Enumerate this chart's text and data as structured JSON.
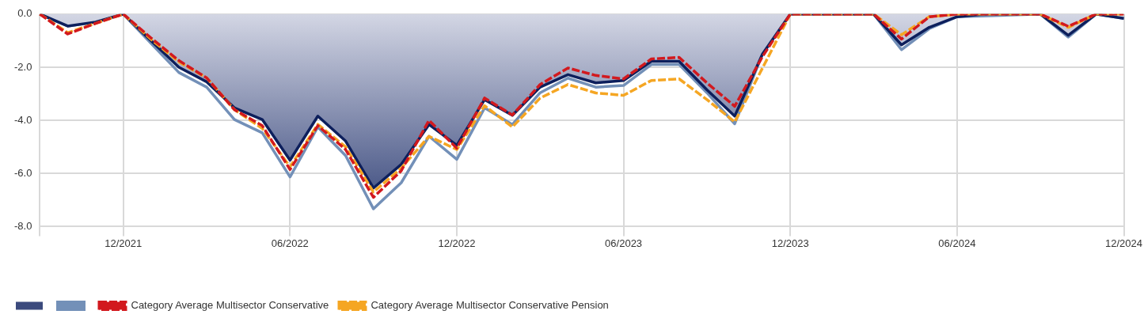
{
  "chart_data": {
    "type": "line",
    "categories": [
      null,
      null,
      null,
      "12/2021",
      null,
      null,
      null,
      null,
      null,
      "06/2022",
      null,
      null,
      null,
      null,
      null,
      "12/2022",
      null,
      null,
      null,
      null,
      null,
      "06/2023",
      null,
      null,
      null,
      null,
      null,
      "12/2023",
      null,
      null,
      null,
      null,
      null,
      "06/2024",
      null,
      null,
      null,
      null,
      null,
      "12/2024"
    ],
    "series": [
      {
        "type": "area",
        "color": "#0d1f5c",
        "values": [
          0,
          -0.45,
          -0.3,
          0,
          -1.0,
          -2.0,
          -2.55,
          -3.53,
          -3.97,
          -5.5,
          -3.84,
          -4.78,
          -6.55,
          -5.66,
          -4.16,
          -4.94,
          -3.22,
          -3.81,
          -2.75,
          -2.28,
          -2.59,
          -2.5,
          -1.78,
          -1.78,
          -2.85,
          -3.84,
          -1.5,
          0,
          0,
          0,
          0,
          -1.16,
          -0.5,
          -0.1,
          0,
          0,
          0,
          -0.8,
          0,
          -0.16
        ]
      },
      {
        "type": "line",
        "color": "#7390b8",
        "values": [
          0,
          -0.45,
          -0.3,
          0,
          -1.1,
          -2.2,
          -2.75,
          -3.97,
          -4.47,
          -6.13,
          -4.25,
          -5.33,
          -7.33,
          -6.35,
          -4.6,
          -5.47,
          -3.53,
          -4.16,
          -2.96,
          -2.41,
          -2.75,
          -2.69,
          -1.9,
          -1.9,
          -2.96,
          -4.13,
          -1.5,
          0,
          null,
          null,
          0,
          -1.34,
          -0.55,
          -0.1,
          null,
          null,
          0,
          -0.87,
          0,
          -0.16
        ]
      },
      {
        "type": "line",
        "name": "Category Average Multisector Conservative",
        "color": "#d2191e",
        "line_style": "dashed",
        "values": [
          0,
          -0.75,
          -0.35,
          0,
          -0.9,
          -1.75,
          -2.4,
          -3.6,
          -4.2,
          -5.85,
          -4.2,
          -5.1,
          -6.9,
          -5.9,
          -4.0,
          -5.05,
          -3.16,
          -3.8,
          -2.65,
          -2.03,
          -2.31,
          -2.44,
          -1.69,
          -1.63,
          -2.59,
          -3.47,
          -1.6,
          0,
          null,
          null,
          0,
          -0.94,
          -0.1,
          0,
          null,
          null,
          0,
          -0.46,
          0,
          0
        ]
      },
      {
        "type": "line",
        "name": "Category Average Multisector Conservative Pension",
        "color": "#f5a623",
        "line_style": "dashed",
        "values": [
          0,
          -0.7,
          -0.35,
          0,
          -0.95,
          -1.8,
          -2.4,
          -3.6,
          -4.3,
          -5.75,
          -4.15,
          -5.0,
          -6.7,
          -5.8,
          -4.6,
          -5.1,
          -3.45,
          -4.25,
          -3.16,
          -2.65,
          -2.97,
          -3.06,
          -2.5,
          -2.44,
          -3.22,
          -4.06,
          -2.03,
          0,
          null,
          null,
          0,
          -0.78,
          -0.1,
          0,
          null,
          null,
          0,
          -0.5,
          0,
          0
        ]
      }
    ],
    "ylim": [
      -8,
      0
    ],
    "yticks": [
      {
        "value": -8,
        "label": "-8.0"
      },
      {
        "value": -6,
        "label": "-6.0"
      },
      {
        "value": -4,
        "label": "-4.0"
      },
      {
        "value": -2,
        "label": "-2.0"
      },
      {
        "value": 0,
        "label": "0.0"
      }
    ],
    "grid": true,
    "legend": "bottom",
    "marker": "none"
  }
}
